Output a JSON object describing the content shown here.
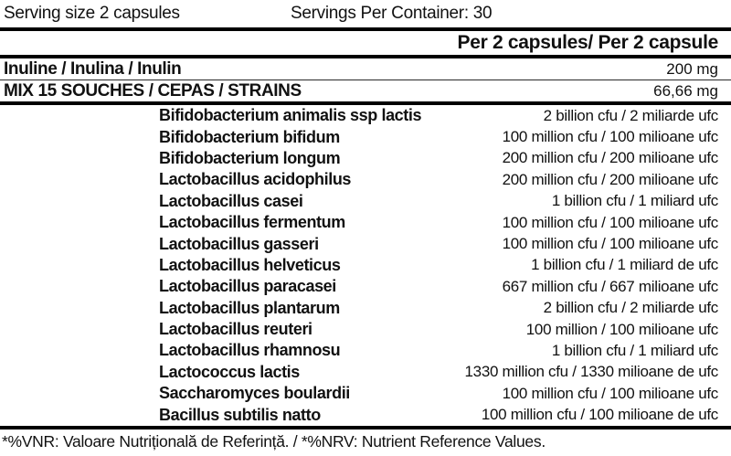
{
  "header": {
    "serving_size": "Serving size 2 capsules",
    "servings_per_container": "Servings Per Container: 30",
    "column_header": "Per 2 capsules/ Per 2 capsule"
  },
  "ingredients": [
    {
      "label": "Inuline / Inulina / Inulin",
      "value": "200 mg"
    },
    {
      "label": "MIX 15 SOUCHES / CEPAS / STRAINS",
      "value": "66,66 mg"
    }
  ],
  "strains": [
    {
      "name": "Bifidobacterium animalis ssp lactis",
      "value": "2 billion cfu / 2 miliarde ufc"
    },
    {
      "name": "Bifidobacterium bifidum",
      "value": "100 million cfu / 100 milioane ufc"
    },
    {
      "name": "Bifidobacterium longum",
      "value": "200 million cfu / 200 milioane ufc"
    },
    {
      "name": "Lactobacillus acidophilus",
      "value": "200 million cfu / 200 milioane ufc"
    },
    {
      "name": "Lactobacillus casei",
      "value": "1 billion cfu / 1 miliard ufc"
    },
    {
      "name": "Lactobacillus fermentum",
      "value": "100 million cfu / 100 milioane ufc"
    },
    {
      "name": "Lactobacillus gasseri",
      "value": "100 million cfu / 100 milioane ufc"
    },
    {
      "name": "Lactobacillus helveticus",
      "value": "1 billion cfu / 1 miliard de ufc"
    },
    {
      "name": "Lactobacillus paracasei",
      "value": "667 million cfu / 667 milioane ufc"
    },
    {
      "name": "Lactobacillus plantarum",
      "value": "2 billion cfu / 2 miliarde ufc"
    },
    {
      "name": "Lactobacillus reuteri",
      "value": "100 million / 100 milioane ufc"
    },
    {
      "name": "Lactobacillus rhamnosu",
      "value": "1 billion cfu / 1 miliard ufc"
    },
    {
      "name": "Lactococcus lactis",
      "value": "1330 million cfu / 1330 milioane de ufc"
    },
    {
      "name": "Saccharomyces boulardii",
      "value": "100 million cfu / 100 milioane ufc"
    },
    {
      "name": "Bacillus subtilis natto",
      "value": "100 million cfu / 100 milioane de ufc"
    }
  ],
  "footer": {
    "note": "*%VNR: Valoare Nutrițională de Referință. / *%NRV: Nutrient Reference Values."
  },
  "colors": {
    "text": "#111111",
    "rule": "#000000",
    "background": "#ffffff"
  }
}
